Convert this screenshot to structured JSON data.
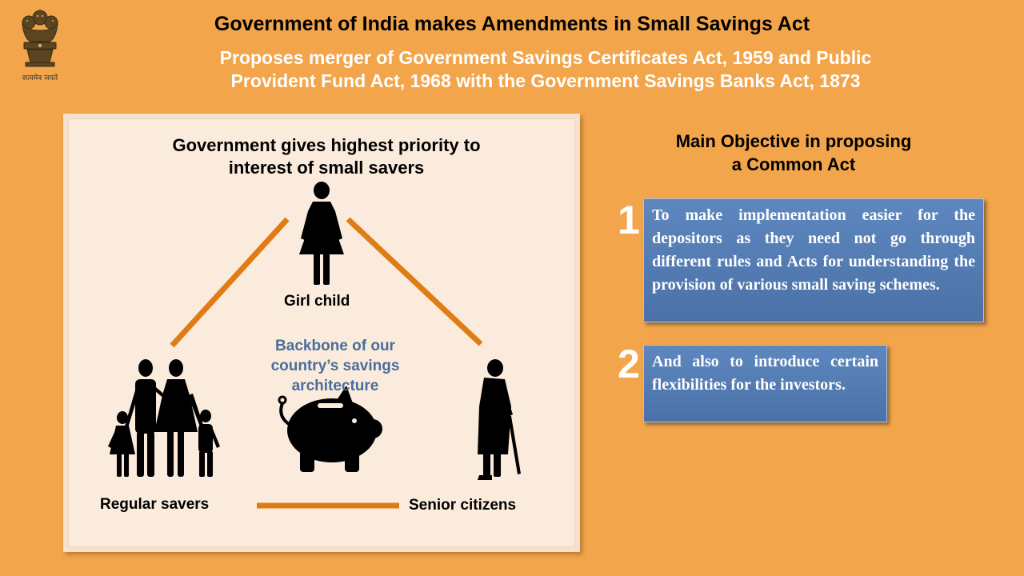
{
  "header": {
    "emblem_caption": "सत्यमेव जयते",
    "title": "Government of India makes Amendments in Small Savings Act",
    "subtitle_line1": "Proposes merger of Government Savings Certificates Act, 1959 and Public",
    "subtitle_line2": "Provident Fund Act, 1968 with the Government Savings Banks Act, 1873"
  },
  "panel": {
    "title_line1": "Government gives highest priority to",
    "title_line2": "interest of small savers",
    "groups": {
      "girl_child": "Girl child",
      "regular_savers": "Regular savers",
      "senior_citizens": "Senior citizens"
    },
    "center_line1": "Backbone of our",
    "center_line2": "country’s savings",
    "center_line3": "architecture"
  },
  "objectives": {
    "title_line1": "Main Objective in proposing",
    "title_line2": "a Common Act",
    "items": [
      {
        "number": "1",
        "text": "To make implementation easier for the depositors as they need not go through different rules and Acts for understanding the provision of various small saving schemes."
      },
      {
        "number": "2",
        "text": "And also to introduce certain flexibilities for the investors."
      }
    ]
  },
  "colors": {
    "background": "#F2A54A",
    "panel": "#FBEBDD",
    "connector": "#E07C14",
    "accent_text": "#4A6E9C",
    "objective_box": "#4A72A8",
    "icon": "#000000"
  },
  "icons": [
    "national-emblem-icon",
    "girl-child-icon",
    "family-icon",
    "senior-citizen-icon",
    "piggy-bank-icon"
  ]
}
